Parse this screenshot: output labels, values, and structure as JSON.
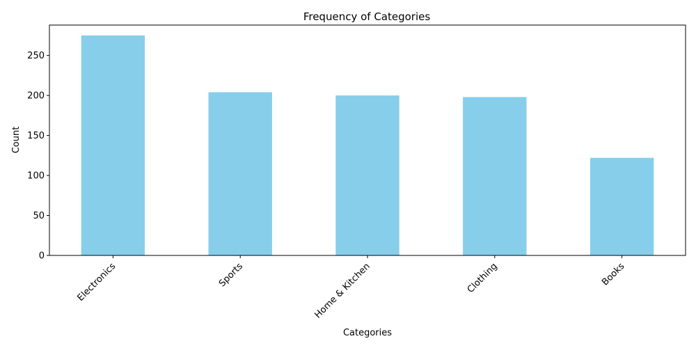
{
  "chart_data": {
    "type": "bar",
    "title": "Frequency of Categories",
    "xlabel": "Categories",
    "ylabel": "Count",
    "categories": [
      "Electronics",
      "Sports",
      "Home & Kitchen",
      "Clothing",
      "Books"
    ],
    "values": [
      275,
      204,
      200,
      198,
      122
    ],
    "ylim": [
      0,
      288
    ],
    "yticks": [
      0,
      50,
      100,
      150,
      200,
      250
    ],
    "bar_color": "#87CEEB",
    "grid": false,
    "legend": "none"
  }
}
